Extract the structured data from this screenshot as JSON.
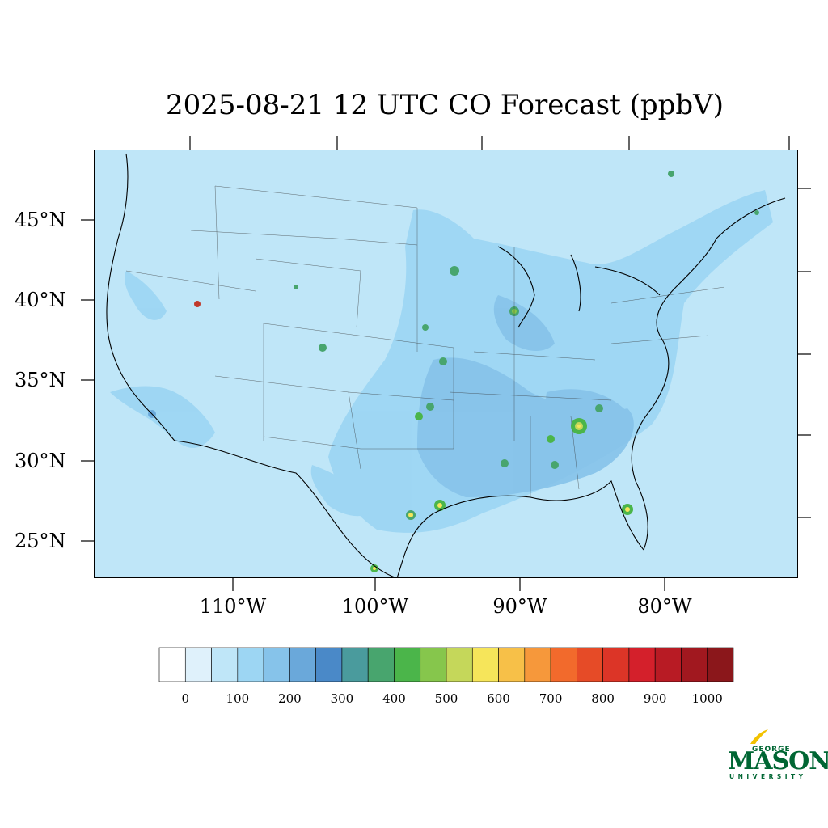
{
  "title": "2025-08-21 12 UTC CO Forecast (ppbV)",
  "lat_labels": [
    "45°N",
    "40°N",
    "35°N",
    "30°N",
    "25°N"
  ],
  "lon_labels": [
    "110°W",
    "100°W",
    "90°W",
    "80°W"
  ],
  "colorbar": {
    "tick_labels": [
      "0",
      "100",
      "200",
      "300",
      "400",
      "500",
      "600",
      "700",
      "800",
      "900",
      "1000"
    ],
    "colors": [
      "#ffffff",
      "#dff1fb",
      "#bfe6f8",
      "#9dd6f3",
      "#86c3ea",
      "#6aa8da",
      "#4a89c8",
      "#4a9b9d",
      "#48a56e",
      "#4bb54a",
      "#86c64c",
      "#c5d75a",
      "#f6e55a",
      "#f7c048",
      "#f6983b",
      "#f26a2c",
      "#e64b27",
      "#dc3527",
      "#d4202b",
      "#b81b24",
      "#a1181f",
      "#8b171b"
    ]
  },
  "map": {
    "background_color": "#bfe6f8",
    "region": "Contiguous United States"
  },
  "logo": {
    "line1": "GEORGE",
    "line2": "MASON",
    "line3": "UNIVERSITY",
    "color": "#006633"
  }
}
